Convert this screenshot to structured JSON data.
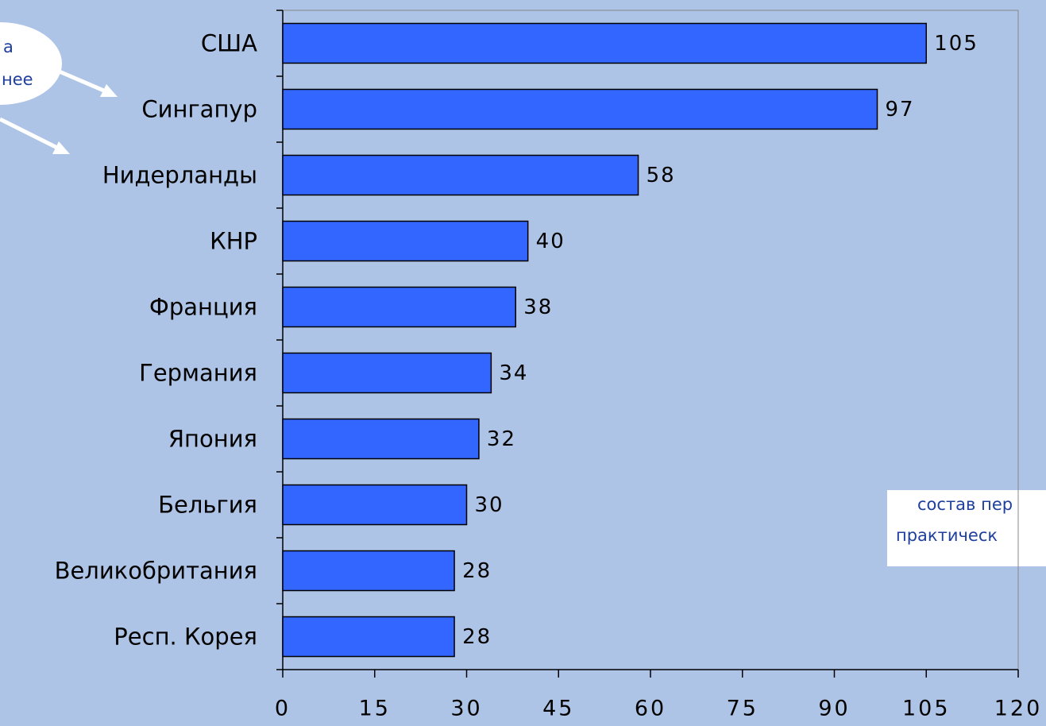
{
  "chart_data": {
    "type": "bar",
    "orientation": "horizontal",
    "categories": [
      "США",
      "Сингапур",
      "Нидерланды",
      "КНР",
      "Франция",
      "Германия",
      "Япония",
      "Бельгия",
      "Великобритания",
      "Респ. Корея"
    ],
    "values": [
      105,
      97,
      58,
      40,
      38,
      34,
      32,
      30,
      28,
      28
    ],
    "color": "#3366ff",
    "xlim": [
      0,
      120
    ],
    "xticks": [
      0,
      15,
      30,
      45,
      60,
      75,
      90,
      105,
      120
    ],
    "annotations": [
      "а",
      "нее",
      "состав пер",
      "практическ"
    ]
  }
}
